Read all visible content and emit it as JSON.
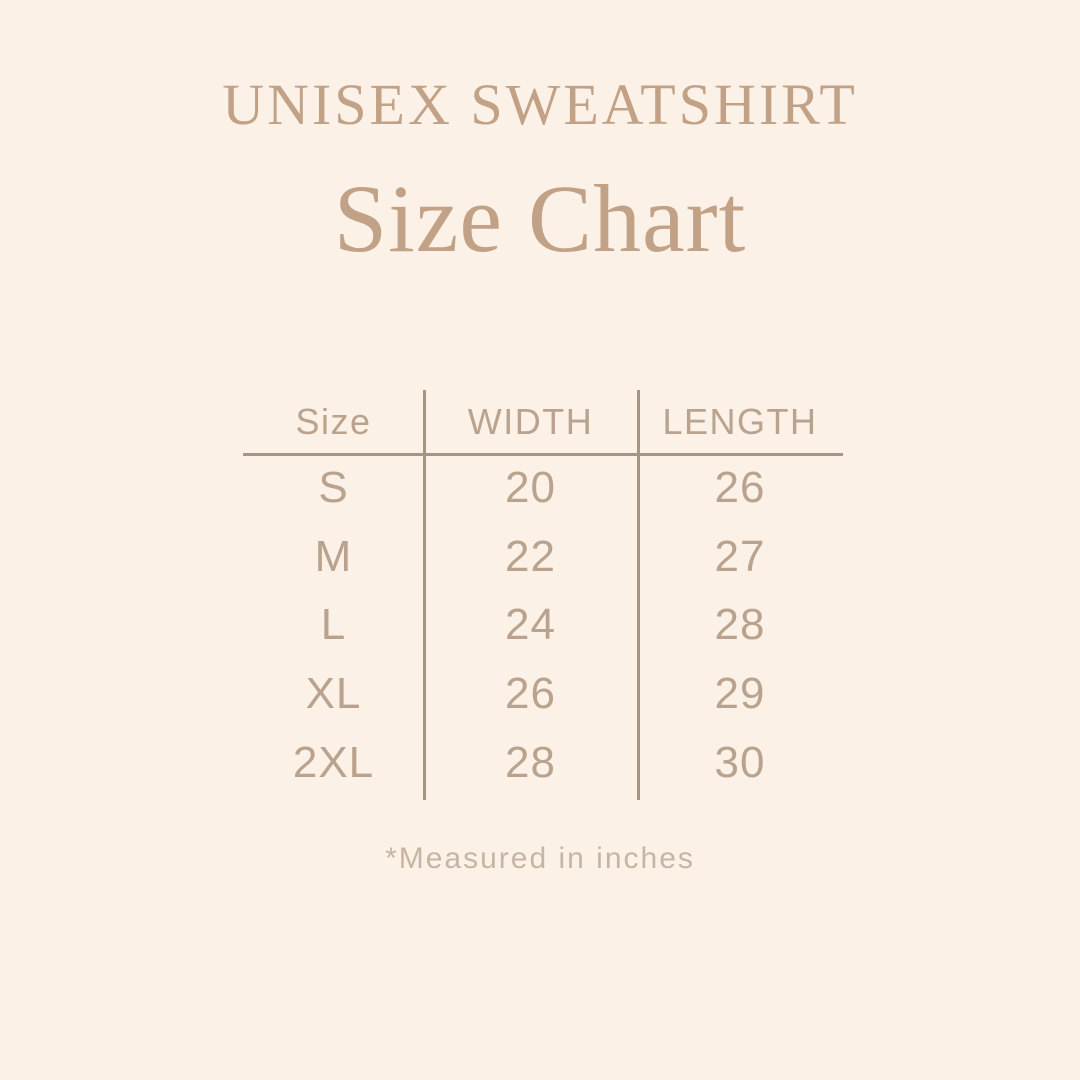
{
  "canvas": {
    "background_color": "#fbf1e6",
    "heading_color": "#c2a287",
    "table_text_color": "#b9a38e",
    "rule_color": "#a79584",
    "footnote_color": "#c7b5a4"
  },
  "header": {
    "eyebrow": "UNISEX SWEATSHIRT",
    "title": "Size Chart"
  },
  "chart_data": {
    "type": "table",
    "title": "Size Chart",
    "subtitle": "UNISEX SWEATSHIRT",
    "columns": [
      "Size",
      "WIDTH",
      "LENGTH"
    ],
    "rows": [
      [
        "S",
        "20",
        "26"
      ],
      [
        "M",
        "22",
        "27"
      ],
      [
        "L",
        "24",
        "28"
      ],
      [
        "XL",
        "26",
        "29"
      ],
      [
        "2XL",
        "28",
        "30"
      ]
    ],
    "note": "*Measured in inches",
    "layout": {
      "legend": "none",
      "grid": "single horizontal rule under header, two vertical column rules"
    }
  },
  "footnote": {
    "text": "*Measured in inches"
  }
}
